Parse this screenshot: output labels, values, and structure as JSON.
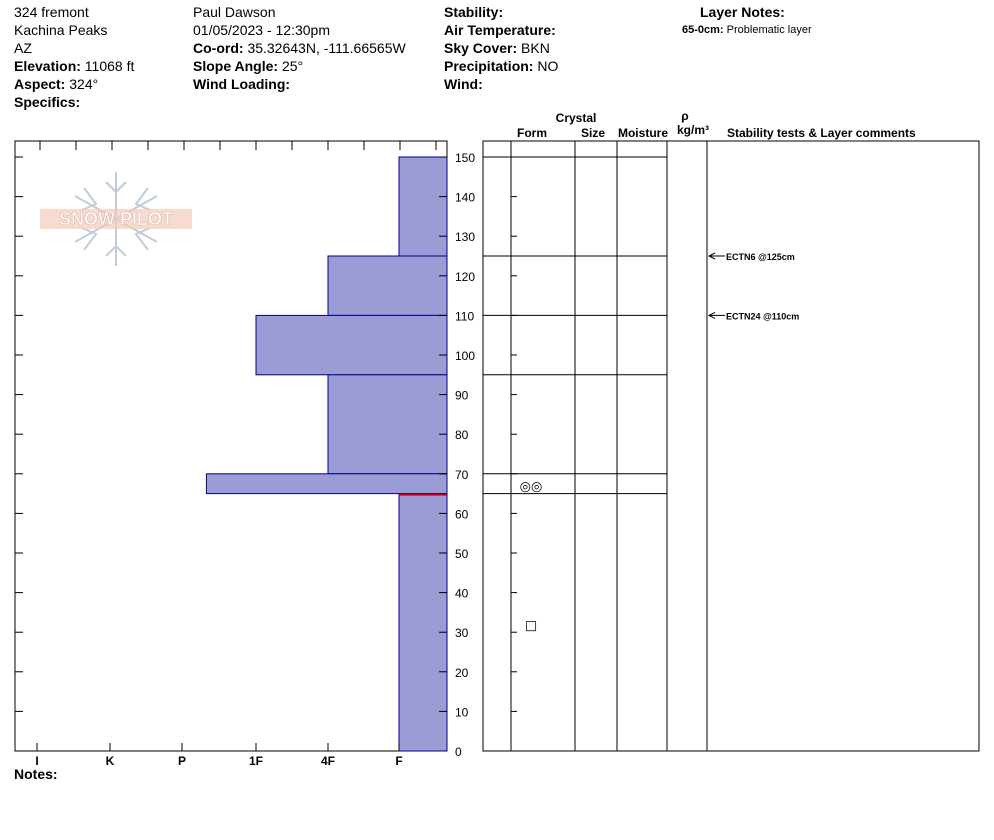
{
  "header": {
    "location": [
      "324 fremont",
      "Kachina Peaks",
      "AZ"
    ],
    "elevation": {
      "label": "Elevation:",
      "value": "11068 ft"
    },
    "aspect": {
      "label": "Aspect:",
      "value": "324°"
    },
    "specifics": {
      "label": "Specifics:",
      "value": ""
    },
    "observer": "Paul Dawson",
    "datetime": "01/05/2023 - 12:30pm",
    "coord": {
      "label": "Co-ord:",
      "value": "35.32643N, -111.66565W"
    },
    "slope": {
      "label": "Slope Angle:",
      "value": "25°"
    },
    "wind_loading": {
      "label": "Wind Loading:",
      "value": ""
    },
    "stability": {
      "label": "Stability:",
      "value": ""
    },
    "air_temp": {
      "label": "Air Temperature:",
      "value": ""
    },
    "sky_cover": {
      "label": "Sky Cover:",
      "value": "BKN"
    },
    "precip": {
      "label": "Precipitation:",
      "value": "NO"
    },
    "wind": {
      "label": "Wind:",
      "value": ""
    },
    "layer_notes": {
      "title": "Layer Notes:",
      "depth": "65-0cm:",
      "text": "Problematic layer"
    }
  },
  "notes_label": "Notes:",
  "logo_text": "SNOW PILOT",
  "colors": {
    "layer_fill": "#9b9bd6",
    "layer_edge": "#00008b",
    "grid": "#000000",
    "weak_line": "#cc0000"
  },
  "chart_data": {
    "type": "bar",
    "description_axis": "height (cm) vs hand hardness",
    "hardness_ticks": [
      "I",
      "K",
      "P",
      "1F",
      "4F",
      "F"
    ],
    "y_ticks": [
      0,
      10,
      20,
      30,
      40,
      50,
      60,
      70,
      80,
      90,
      100,
      110,
      120,
      130,
      140,
      150
    ],
    "ylim": [
      0,
      155
    ],
    "layers": [
      {
        "top": 150,
        "bottom": 125,
        "hardness": 0
      },
      {
        "top": 125,
        "bottom": 110,
        "hardness": 1
      },
      {
        "top": 110,
        "bottom": 95,
        "hardness": 2.0
      },
      {
        "top": 95,
        "bottom": 70,
        "hardness": 1
      },
      {
        "top": 70,
        "bottom": 65,
        "hardness": 2.67
      },
      {
        "top": 65,
        "bottom": 0,
        "hardness": 0
      }
    ],
    "layer_boundaries": [
      150,
      125,
      110,
      95,
      70,
      65
    ],
    "columns": {
      "crystal_title": "Crystal",
      "form": "Form",
      "size": "Size",
      "moisture": "Moisture",
      "rho": "ρ",
      "density_unit": "kg/m³",
      "comments": "Stability tests & Layer comments"
    },
    "crystal_symbols": [
      {
        "height": 67,
        "symbol": "◎◎"
      },
      {
        "height": 32,
        "symbol": "□"
      }
    ],
    "stability_tests": [
      {
        "height": 125,
        "label": "ECTN6 @125cm"
      },
      {
        "height": 110,
        "label": "ECTN24 @110cm"
      }
    ],
    "weak_layer_height": 65
  }
}
